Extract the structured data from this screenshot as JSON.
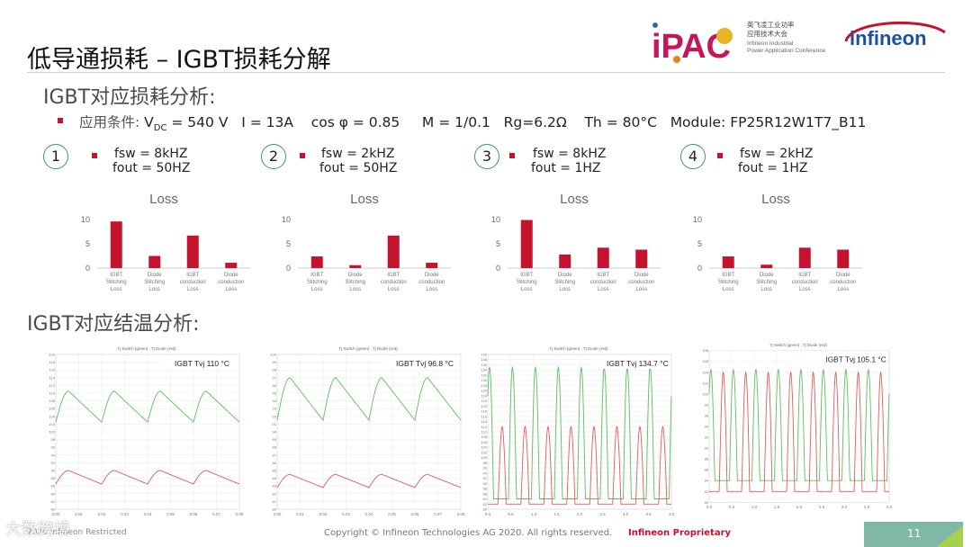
{
  "title": "低导通损耗 – IGBT损耗分解",
  "logo": {
    "ipac_text": "iPAC",
    "ipac_cn": "英飞凌工业功率",
    "ipac_cn2": "应用技术大会",
    "ipac_en1": "Infineon Industrial",
    "ipac_en2": "Power Application Conference",
    "brand": "infineon"
  },
  "section1": "IGBT对应损耗分析:",
  "section2": "IGBT对应结温分析:",
  "conditions": {
    "label": "应用条件:",
    "vdc": "V",
    "vdc_sub": "DC",
    "vdc_val": " = 540 V",
    "current": "I = 13A",
    "cosphi": "cos φ = 0.85",
    "m": "M = 1/0.1",
    "rg": "Rg=6.2Ω",
    "th": "Th = 80°C",
    "module": "Module: FP25R12W1T7_B11"
  },
  "cases": [
    {
      "num": "1",
      "fsw": "fsw = 8kHZ",
      "fout": "fout = 50HZ"
    },
    {
      "num": "2",
      "fsw": "fsw = 2kHZ",
      "fout": "fout = 50HZ"
    },
    {
      "num": "3",
      "fsw": "fsw = 8kHZ",
      "fout": "fout = 1HZ"
    },
    {
      "num": "4",
      "fsw": "fsw = 2kHZ",
      "fout": "fout = 1HZ"
    }
  ],
  "chart_data": [
    {
      "type": "bar",
      "title": "Loss",
      "categories": [
        "IGBT Slitching Loss",
        "Diode Slitching Loss",
        "IGBT conduction Loss",
        "Diode conduction Loss"
      ],
      "values": [
        9.6,
        2.5,
        6.7,
        1.1
      ],
      "ylim": [
        0,
        10
      ],
      "yticks": [
        0,
        5,
        10
      ],
      "color": "#c4122f"
    },
    {
      "type": "bar",
      "title": "Loss",
      "categories": [
        "IGBT Slitching Loss",
        "Diode Slitching Loss",
        "IGBT conduction Loss",
        "Diode conduction Loss"
      ],
      "values": [
        2.4,
        0.6,
        6.7,
        1.1
      ],
      "ylim": [
        0,
        10
      ],
      "yticks": [
        0,
        5,
        10
      ],
      "color": "#c4122f"
    },
    {
      "type": "bar",
      "title": "Loss",
      "categories": [
        "IGBT Slitching Loss",
        "Diode Slitching Loss",
        "IGBT conduction Loss",
        "Diode conduction Loss"
      ],
      "values": [
        9.9,
        2.8,
        4.2,
        3.8
      ],
      "ylim": [
        0,
        10
      ],
      "yticks": [
        0,
        5,
        10
      ],
      "color": "#c4122f"
    },
    {
      "type": "bar",
      "title": "Loss",
      "categories": [
        "IGBT Slitching Loss",
        "Diode Slitching Loss",
        "IGBT conduction Loss",
        "Diode conduction Loss"
      ],
      "values": [
        2.4,
        0.7,
        4.2,
        3.8
      ],
      "ylim": [
        0,
        10
      ],
      "yticks": [
        0,
        5,
        10
      ],
      "color": "#c4122f"
    },
    {
      "type": "line",
      "title": "Tj Switch (green) , Tj Diode (red)",
      "annotation": "IGBT Tvj   110 °C",
      "ylim": [
        80,
        120
      ],
      "yticks": [
        80,
        82,
        84,
        86,
        88,
        90,
        92,
        94,
        96,
        98,
        100,
        102,
        104,
        106,
        108,
        110,
        112,
        114,
        116,
        118,
        120
      ],
      "xticks": [
        "0.00",
        "0.01",
        "0.02",
        "0.03",
        "0.04",
        "0.05",
        "0.06",
        "0.07",
        "0.08"
      ],
      "series": [
        {
          "color": "#5cbf5c",
          "shape": "sawtooth",
          "base": 102.5,
          "peak": 110.5,
          "periods": 4
        },
        {
          "color": "#e05a5a",
          "shape": "sawtooth",
          "base": 86.5,
          "peak": 90,
          "periods": 4
        }
      ]
    },
    {
      "type": "line",
      "title": "Tj Switch (green) , Tj Diode (red)",
      "annotation": "IGBT Tvj   96.8 °C",
      "ylim": [
        80,
        100
      ],
      "yticks": [
        80,
        81,
        82,
        83,
        84,
        85,
        86,
        87,
        88,
        89,
        90,
        91,
        92,
        93,
        94,
        95,
        96,
        97,
        98,
        99,
        100
      ],
      "xticks": [
        "0.00",
        "0.01",
        "0.02",
        "0.03",
        "0.04",
        "0.05",
        "0.06",
        "0.07",
        "0.08"
      ],
      "series": [
        {
          "color": "#5cbf5c",
          "shape": "sawtooth",
          "base": 91.5,
          "peak": 97,
          "periods": 4
        },
        {
          "color": "#e05a5a",
          "shape": "sawtooth",
          "base": 82.8,
          "peak": 84.5,
          "periods": 4
        }
      ]
    },
    {
      "type": "line",
      "title": "Tj Switch (green) , Tj Diode (red)",
      "annotation": "IGBT Tvj   134.7 °C",
      "ylim": [
        80,
        140
      ],
      "yticks": [
        80,
        82,
        84,
        86,
        88,
        90,
        92,
        94,
        96,
        98,
        100,
        102,
        104,
        106,
        108,
        110,
        112,
        114,
        116,
        118,
        120,
        122,
        124,
        126,
        128,
        130,
        132,
        134,
        136,
        138,
        140
      ],
      "xticks": [
        "0.0",
        "0.5",
        "1.0",
        "1.5",
        "2.0",
        "2.5",
        "3.0",
        "3.5",
        "4.0"
      ],
      "series": [
        {
          "color": "#5cbf5c",
          "shape": "pulse",
          "base": 84,
          "peak": 135,
          "periods": 8,
          "phase": 0.1
        },
        {
          "color": "#e05a5a",
          "shape": "pulse",
          "base": 82,
          "peak": 112,
          "periods": 8,
          "phase": 0.55
        }
      ]
    },
    {
      "type": "line",
      "title": "Tj Switch (green) , Tj Diode (red)",
      "annotation": "IGBT Tvj   105.1 °C",
      "ylim": [
        80,
        108
      ],
      "yticks": [
        80,
        82,
        84,
        86,
        88,
        90,
        92,
        94,
        96,
        98,
        100,
        102,
        104,
        106,
        108
      ],
      "xticks": [
        "0.0",
        "0.5",
        "1.0",
        "1.5",
        "2.0",
        "2.5",
        "3.0",
        "3.5",
        "4.0"
      ],
      "series": [
        {
          "color": "#5cbf5c",
          "shape": "pulse",
          "base": 84,
          "peak": 104.5,
          "periods": 8,
          "phase": 0.1
        },
        {
          "color": "#e05a5a",
          "shape": "pulse",
          "base": 82,
          "peak": 104,
          "periods": 8,
          "phase": 0.55
        }
      ]
    }
  ],
  "footer": {
    "left": "2020 Infineon Restricted",
    "copyright": "Copyright © Infineon Technologies AG 2020. All rights reserved.",
    "proprietary": "Infineon  Proprietary",
    "page": "11",
    "watermark": "大数跨境"
  }
}
